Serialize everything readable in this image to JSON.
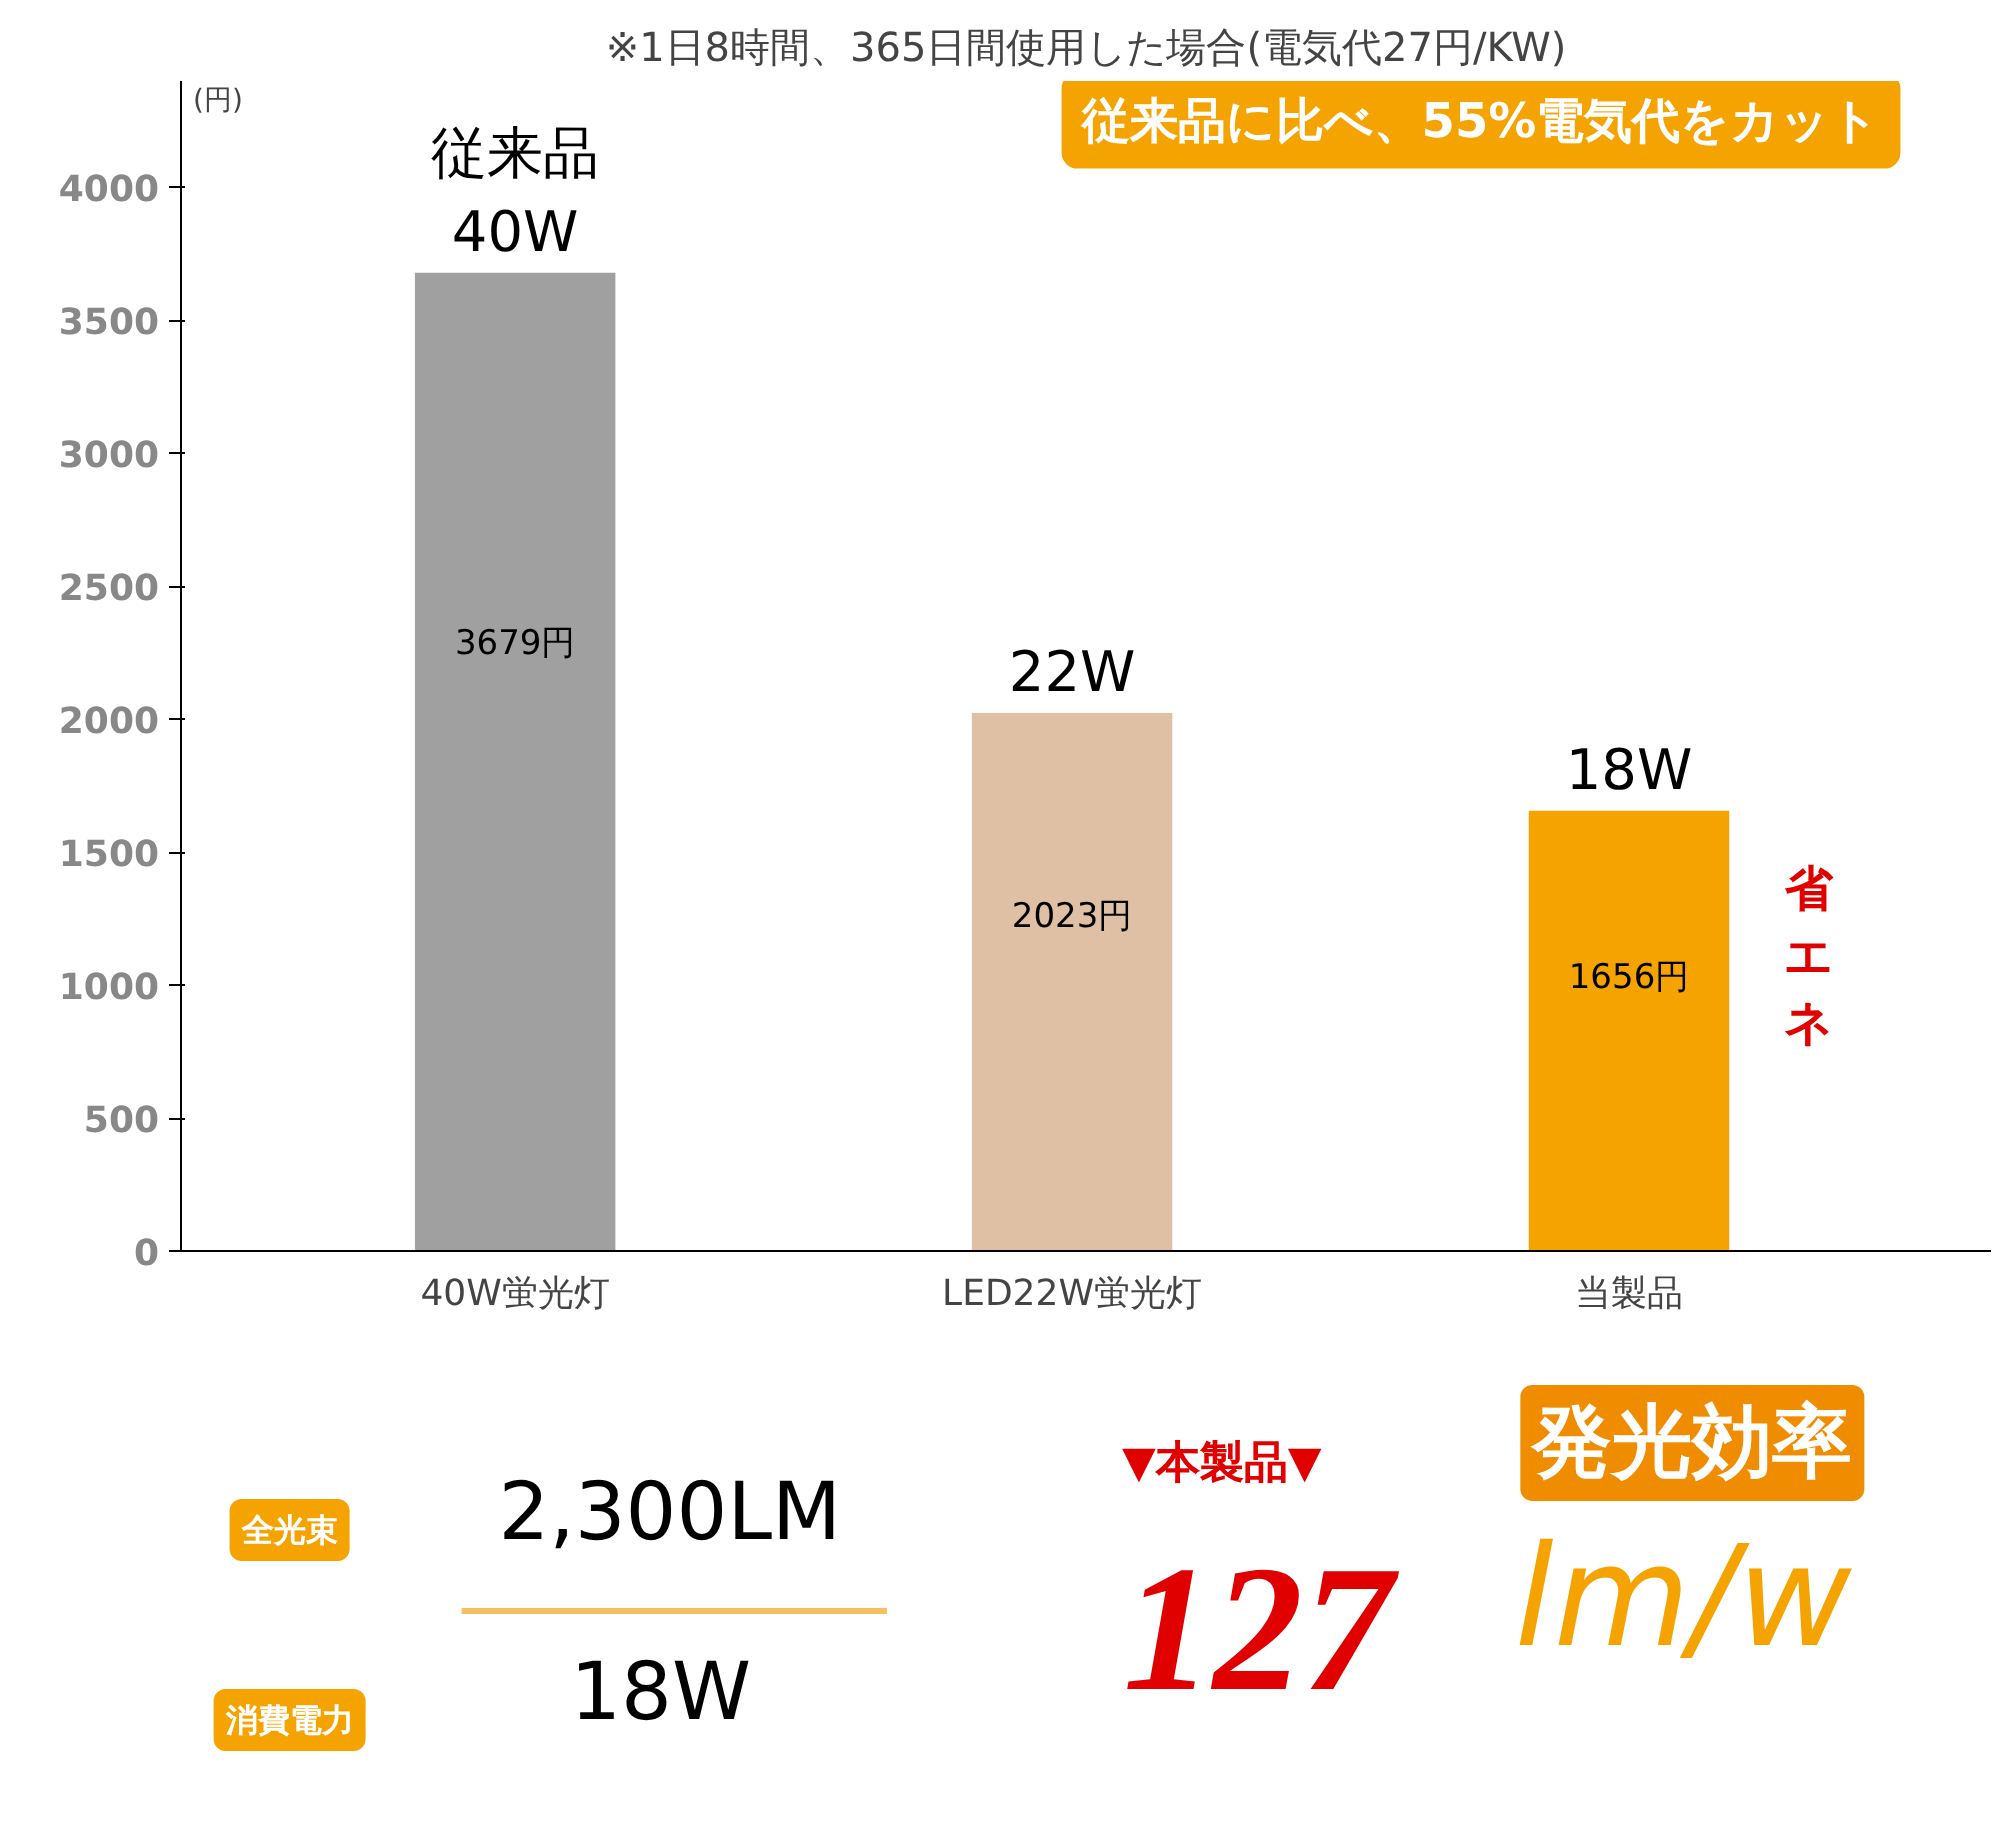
{
  "chart_data": {
    "type": "bar",
    "title": "※1日8時間、365日間使用した場合(電気代27円/KW)",
    "ylabel": "(円)",
    "categories": [
      "40W蛍光灯",
      "LED22W蛍光灯",
      "当製品"
    ],
    "values": [
      3679,
      2023,
      1656
    ],
    "colors": [
      "#a0a0a0",
      "#dfc0a5",
      "#f5a300"
    ],
    "value_labels": [
      "3679円",
      "2023円",
      "1656円"
    ],
    "ylim": [
      0,
      4400
    ],
    "yticks": [
      0,
      500,
      1000,
      1500,
      2000,
      2500,
      3000,
      3500,
      4000
    ],
    "grid": false,
    "annotations": [
      "従来品に比べ、55%電気代をカット",
      "▼本製品▼",
      "全光束",
      "2,300LM",
      "発光効率",
      "消費電力",
      "18W",
      "127",
      "lm/w",
      {
        "text": "従来品\n40W",
        "x": "40W蛍光灯",
        "y": 3679
      },
      {
        "text": "22W",
        "x": "LED22W蛍光灯",
        "y": 2023
      },
      {
        "text": "18W",
        "x": "当製品",
        "y": 1656
      },
      "省エネ"
    ]
  }
}
